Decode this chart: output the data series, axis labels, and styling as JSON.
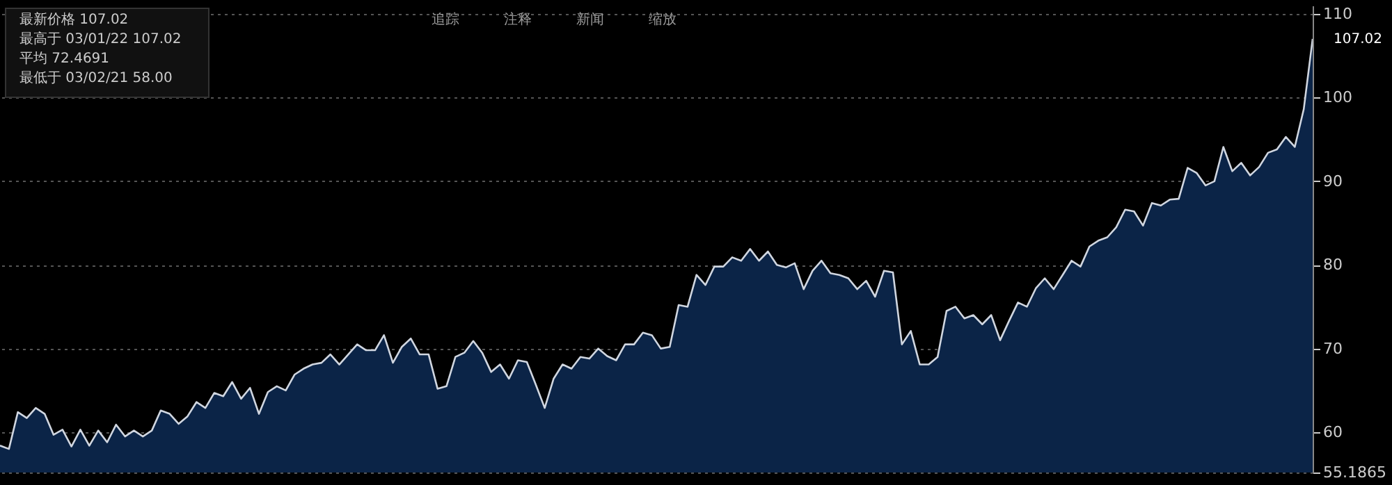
{
  "chart_data": {
    "type": "area",
    "categories": [
      null,
      null,
      null,
      null,
      null,
      null,
      null,
      null,
      null,
      null,
      null,
      null,
      null,
      null,
      null,
      null,
      null,
      null,
      null,
      null,
      null,
      null,
      null,
      null,
      null,
      null,
      null,
      null,
      null,
      null,
      null,
      null,
      null,
      null,
      null,
      null,
      null,
      null,
      null,
      null,
      null,
      null,
      null,
      null,
      null,
      null,
      null,
      null,
      null,
      null,
      null,
      null,
      null,
      null,
      null,
      null,
      null,
      null,
      null,
      null,
      null,
      null,
      null,
      null,
      null,
      null,
      null,
      null,
      null,
      null,
      null,
      null,
      null,
      null,
      null,
      null,
      null,
      null,
      null,
      null,
      null,
      null,
      null,
      null,
      null,
      null,
      null,
      null,
      null,
      null,
      null,
      null,
      null,
      null,
      null,
      null,
      null,
      null,
      null,
      null,
      null,
      null,
      null,
      null,
      null,
      null,
      null,
      null,
      null,
      null,
      null,
      null,
      null,
      null,
      null,
      null,
      null,
      null,
      null,
      null,
      null,
      null,
      null,
      null,
      null,
      null,
      null,
      null,
      null,
      null,
      null,
      null,
      null,
      null,
      null,
      null,
      null,
      null,
      null,
      null,
      null,
      null,
      null,
      null,
      null,
      null,
      null,
      null
    ],
    "series": [
      {
        "color": "#0b2447",
        "values": [
          58.4,
          58.0,
          62.4,
          61.7,
          62.9,
          62.2,
          59.7,
          60.3,
          58.3,
          60.3,
          58.4,
          60.2,
          58.8,
          60.9,
          59.5,
          60.2,
          59.5,
          60.2,
          62.6,
          62.2,
          61.0,
          61.9,
          63.6,
          62.9,
          64.7,
          64.3,
          66.0,
          64.0,
          65.3,
          62.2,
          64.8,
          65.5,
          65.0,
          66.9,
          67.6,
          68.1,
          68.3,
          69.3,
          68.1,
          69.3,
          70.5,
          69.8,
          69.8,
          71.6,
          68.3,
          70.2,
          71.2,
          69.3,
          69.3,
          65.2,
          65.5,
          69.0,
          69.5,
          70.9,
          69.5,
          67.2,
          68.1,
          66.4,
          68.6,
          68.4,
          65.7,
          62.9,
          66.4,
          68.1,
          67.6,
          69.0,
          68.8,
          70.0,
          69.1,
          68.6,
          70.5,
          70.5,
          71.9,
          71.6,
          70.0,
          70.2,
          75.2,
          75.0,
          78.8,
          77.6,
          79.8,
          79.8,
          80.9,
          80.5,
          81.9,
          80.5,
          81.6,
          80.0,
          79.7,
          80.2,
          77.1,
          79.3,
          80.5,
          79.0,
          78.8,
          78.4,
          77.1,
          78.1,
          76.2,
          79.3,
          79.1,
          70.5,
          72.1,
          68.1,
          68.1,
          69.0,
          74.5,
          75.0,
          73.6,
          74.0,
          72.9,
          74.0,
          71.0,
          73.3,
          75.5,
          75.0,
          77.2,
          78.4,
          77.1,
          78.8,
          80.5,
          79.8,
          82.2,
          82.9,
          83.3,
          84.5,
          86.6,
          86.4,
          84.7,
          87.4,
          87.1,
          87.8,
          87.9,
          91.6,
          91.0,
          89.5,
          90.0,
          94.1,
          91.2,
          92.2,
          90.7,
          91.7,
          93.4,
          93.8,
          95.3,
          94.1,
          98.6,
          107.02
        ]
      }
    ],
    "ylim": [
      55.1865,
      111
    ],
    "yticks": [
      {
        "value": 55.1865,
        "label": "55.1865"
      },
      60,
      70,
      80,
      90,
      100,
      110
    ],
    "grid": "y",
    "annotations": [
      "最新价格 107.02",
      "最高于 03/01/22 107.02",
      "平均 72.4691",
      "最低于 03/02/21 58.00",
      "追踪",
      "注释",
      "新闻",
      "缩放",
      "107.02"
    ]
  }
}
